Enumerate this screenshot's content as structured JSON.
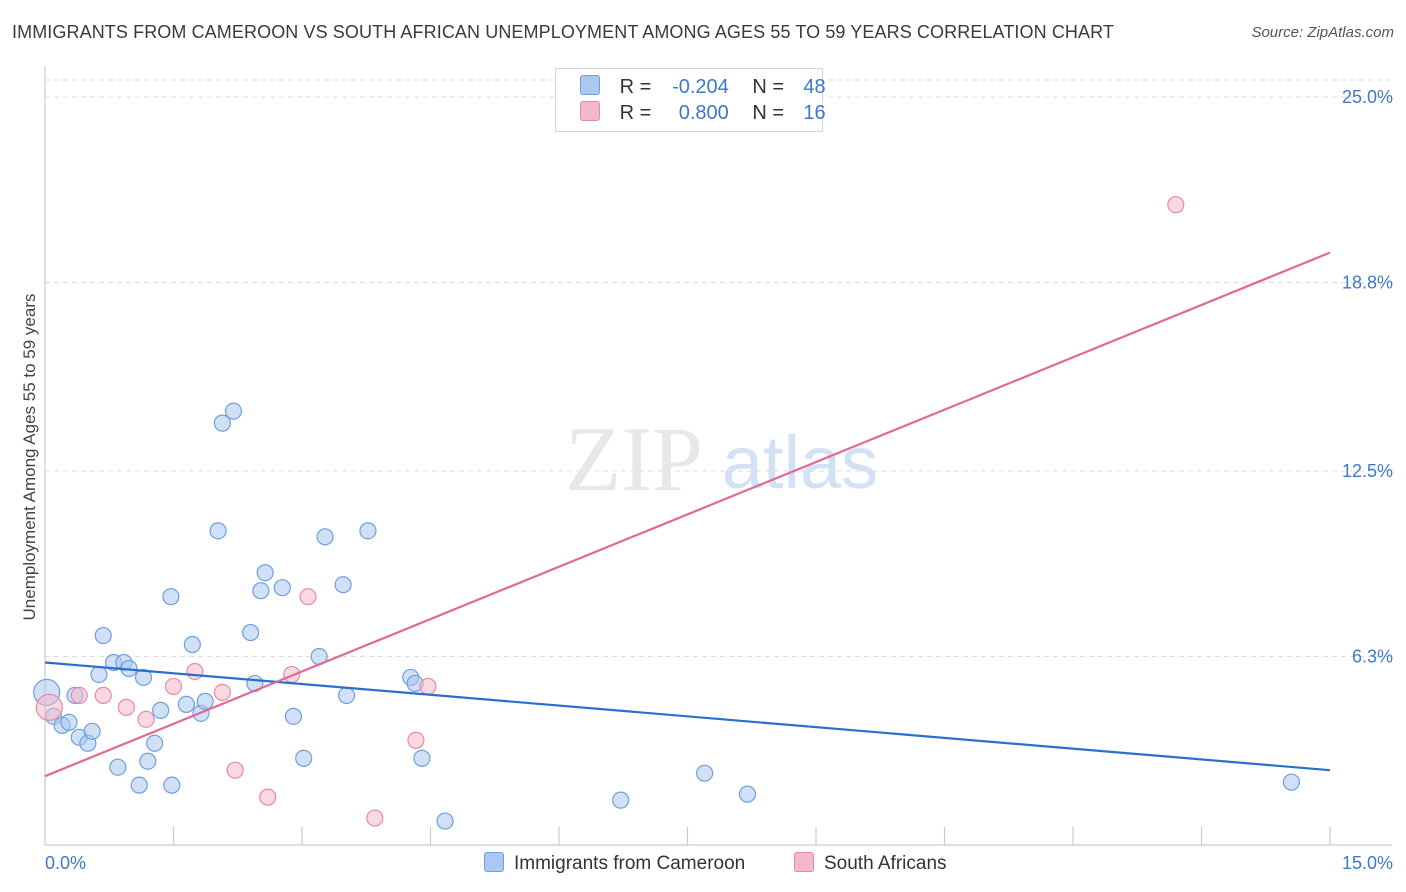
{
  "title": "IMMIGRANTS FROM CAMEROON VS SOUTH AFRICAN UNEMPLOYMENT AMONG AGES 55 TO 59 YEARS CORRELATION CHART",
  "source": "Source: ZipAtlas.com",
  "watermark": {
    "zip": "ZIP",
    "atlas": "atlas"
  },
  "legend": {
    "rows": [
      {
        "r_label": "R =",
        "r_value": "-0.204",
        "n_label": "N =",
        "n_value": "48",
        "color": "#aac9f0"
      },
      {
        "r_label": "R =",
        "r_value": "0.800",
        "n_label": "N =",
        "n_value": "16",
        "color": "#f5b8c9"
      }
    ]
  },
  "colors": {
    "blue_fill": "#aac9f0",
    "blue_stroke": "#6f9fdc",
    "blue_line": "#2a6fcc",
    "pink_fill": "#f5b8c9",
    "pink_stroke": "#e58aa7",
    "pink_line": "#e06a93",
    "grid": "#dddddd",
    "axis": "#cccccc",
    "tick_text": "#3f78c9"
  },
  "chart_data": {
    "type": "scatter",
    "title": "IMMIGRANTS FROM CAMEROON VS SOUTH AFRICAN UNEMPLOYMENT AMONG AGES 55 TO 59 YEARS CORRELATION CHART",
    "xlabel": "",
    "ylabel": "Unemployment Among Ages 55 to 59 years",
    "xlim": [
      0,
      15
    ],
    "ylim": [
      0,
      25
    ],
    "x_tick_labels": [
      {
        "value": 0,
        "label": "0.0%"
      },
      {
        "value": 15,
        "label": "15.0%"
      }
    ],
    "y_tick_labels": [
      {
        "value": 6.3,
        "label": "6.3%"
      },
      {
        "value": 12.5,
        "label": "12.5%"
      },
      {
        "value": 18.8,
        "label": "18.8%"
      },
      {
        "value": 25.0,
        "label": "25.0%"
      }
    ],
    "x_minor_ticks": [
      1.5,
      3.0,
      4.5,
      6.0,
      7.5,
      9.0,
      10.5,
      12.0,
      13.5,
      15.0
    ],
    "series": [
      {
        "name": "Immigrants from Cameroon",
        "color": "#aac9f0",
        "trend": {
          "x": [
            0,
            15
          ],
          "y": [
            6.1,
            2.5
          ]
        },
        "points": [
          {
            "x": 0.02,
            "y": 5.1,
            "big": true
          },
          {
            "x": 0.1,
            "y": 4.3
          },
          {
            "x": 0.2,
            "y": 4.0
          },
          {
            "x": 0.28,
            "y": 4.1
          },
          {
            "x": 0.35,
            "y": 5.0
          },
          {
            "x": 0.4,
            "y": 3.6
          },
          {
            "x": 0.5,
            "y": 3.4
          },
          {
            "x": 0.55,
            "y": 3.8
          },
          {
            "x": 0.63,
            "y": 5.7
          },
          {
            "x": 0.68,
            "y": 7.0
          },
          {
            "x": 0.8,
            "y": 6.1
          },
          {
            "x": 0.85,
            "y": 2.6
          },
          {
            "x": 0.92,
            "y": 6.1
          },
          {
            "x": 0.98,
            "y": 5.9
          },
          {
            "x": 1.1,
            "y": 2.0
          },
          {
            "x": 1.15,
            "y": 5.6
          },
          {
            "x": 1.2,
            "y": 2.8
          },
          {
            "x": 1.28,
            "y": 3.4
          },
          {
            "x": 1.35,
            "y": 4.5
          },
          {
            "x": 1.47,
            "y": 8.3
          },
          {
            "x": 1.48,
            "y": 2.0
          },
          {
            "x": 1.65,
            "y": 4.7
          },
          {
            "x": 1.72,
            "y": 6.7
          },
          {
            "x": 1.82,
            "y": 4.4
          },
          {
            "x": 1.87,
            "y": 4.8
          },
          {
            "x": 2.02,
            "y": 10.5
          },
          {
            "x": 2.07,
            "y": 14.1
          },
          {
            "x": 2.2,
            "y": 14.5
          },
          {
            "x": 2.4,
            "y": 7.1
          },
          {
            "x": 2.45,
            "y": 5.4
          },
          {
            "x": 2.52,
            "y": 8.5
          },
          {
            "x": 2.57,
            "y": 9.1
          },
          {
            "x": 2.77,
            "y": 8.6
          },
          {
            "x": 2.9,
            "y": 4.3
          },
          {
            "x": 3.02,
            "y": 2.9
          },
          {
            "x": 3.2,
            "y": 6.3
          },
          {
            "x": 3.27,
            "y": 10.3
          },
          {
            "x": 3.48,
            "y": 8.7
          },
          {
            "x": 3.52,
            "y": 5.0
          },
          {
            "x": 3.77,
            "y": 10.5
          },
          {
            "x": 4.27,
            "y": 5.6
          },
          {
            "x": 4.32,
            "y": 5.4
          },
          {
            "x": 4.4,
            "y": 2.9
          },
          {
            "x": 4.67,
            "y": 0.8
          },
          {
            "x": 6.72,
            "y": 1.5
          },
          {
            "x": 7.7,
            "y": 2.4
          },
          {
            "x": 8.2,
            "y": 1.7
          },
          {
            "x": 14.55,
            "y": 2.1
          }
        ]
      },
      {
        "name": "South Africans",
        "color": "#f5b8c9",
        "trend": {
          "x": [
            0,
            15
          ],
          "y": [
            2.3,
            19.8
          ]
        },
        "points": [
          {
            "x": 0.05,
            "y": 4.6,
            "big": true
          },
          {
            "x": 0.4,
            "y": 5.0
          },
          {
            "x": 0.68,
            "y": 5.0
          },
          {
            "x": 0.95,
            "y": 4.6
          },
          {
            "x": 1.18,
            "y": 4.2
          },
          {
            "x": 1.5,
            "y": 5.3
          },
          {
            "x": 1.75,
            "y": 5.8
          },
          {
            "x": 2.07,
            "y": 5.1
          },
          {
            "x": 2.22,
            "y": 2.5
          },
          {
            "x": 2.6,
            "y": 1.6
          },
          {
            "x": 2.88,
            "y": 5.7
          },
          {
            "x": 3.07,
            "y": 8.3
          },
          {
            "x": 3.85,
            "y": 0.9
          },
          {
            "x": 4.33,
            "y": 3.5
          },
          {
            "x": 4.47,
            "y": 5.3
          },
          {
            "x": 13.2,
            "y": 21.4
          }
        ]
      }
    ]
  }
}
